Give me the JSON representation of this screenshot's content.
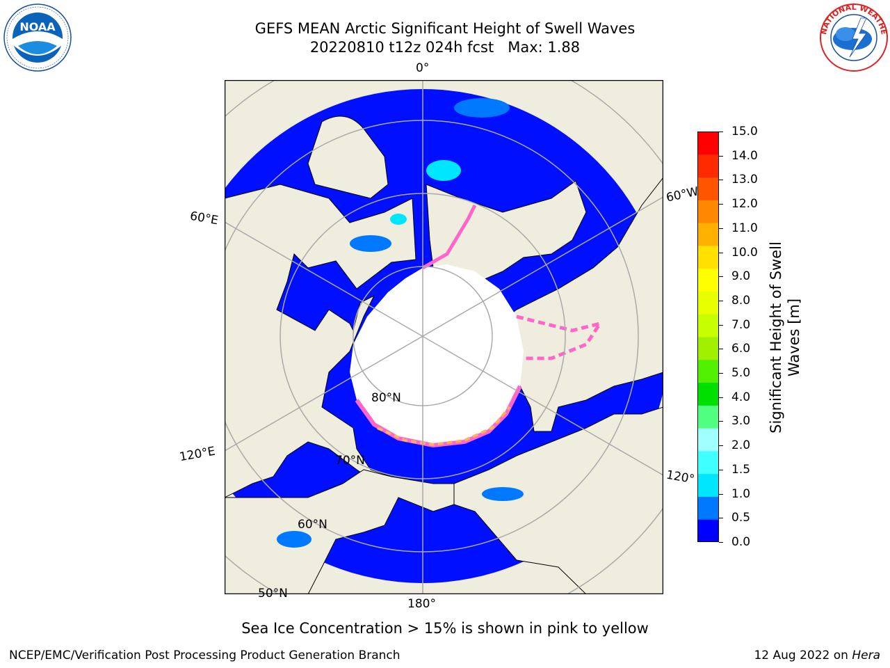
{
  "header": {
    "title_line1": "GEFS MEAN Arctic Significant Height of Swell Waves",
    "title_line2": "20220810 t12z 024h fcst   Max: 1.88"
  },
  "logos": {
    "left": "noaa-logo",
    "right": "national-weather-service-logo"
  },
  "map": {
    "projection": "north-polar-stereographic",
    "meridian_labels": [
      "0°",
      "60°W",
      "60°E",
      "120°E",
      "120°",
      "180°"
    ],
    "parallel_labels": [
      "80°N",
      "70°N",
      "60°N",
      "50°N"
    ],
    "colors": {
      "land": "#eeedde",
      "sea_ice": "#ffffff",
      "open_water": "#0010ff",
      "gridline": "#aaaaaa",
      "ice_edge": "#ff66cc"
    }
  },
  "colorbar": {
    "label": "Significant Height of Swell Waves [m]",
    "ticks": [
      "15.0",
      "14.0",
      "13.0",
      "12.0",
      "11.0",
      "10.0",
      "9.0",
      "8.0",
      "7.0",
      "6.0",
      "5.0",
      "4.0",
      "3.0",
      "2.0",
      "1.5",
      "1.0",
      "0.5",
      "0.0"
    ],
    "colors_bottom_to_top": [
      "#0000ff",
      "#0078ff",
      "#00e6ff",
      "#40ffff",
      "#a0ffff",
      "#50ff80",
      "#00e000",
      "#50f000",
      "#a0f000",
      "#c8ff00",
      "#e8ff00",
      "#ffff00",
      "#ffe000",
      "#ffb000",
      "#ff8800",
      "#ff5500",
      "#ff2a00",
      "#ff0000"
    ]
  },
  "subtitle": "Sea Ice Concentration > 15% is shown in pink to yellow",
  "footer": {
    "left": "NCEP/EMC/Verification Post Processing Product Generation Branch",
    "date": "12 Aug 2022 on ",
    "machine": "Hera"
  }
}
